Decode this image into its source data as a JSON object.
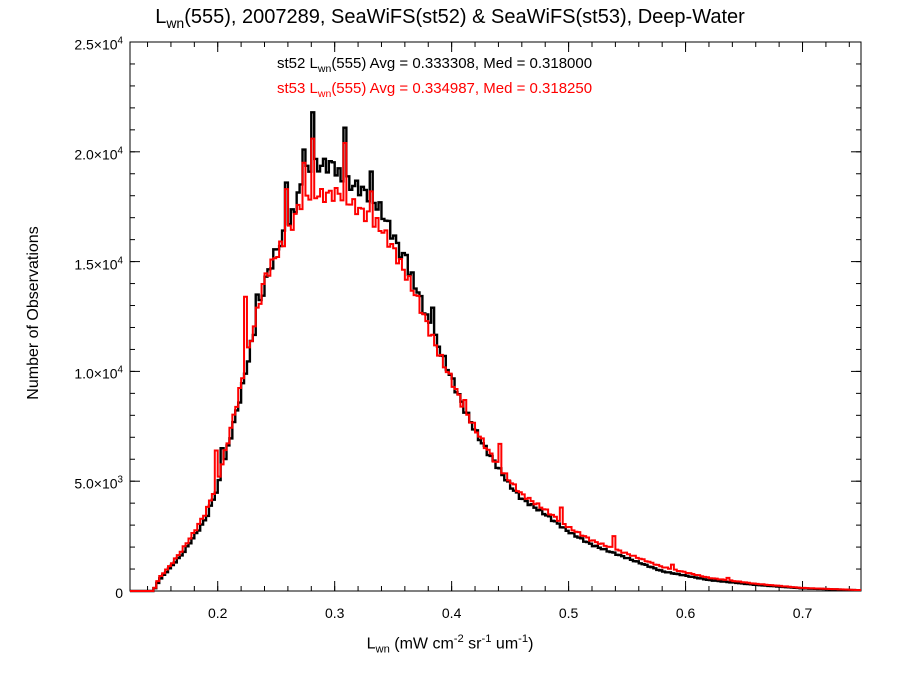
{
  "chart_data": {
    "type": "line",
    "title": {
      "main": "L",
      "sub": "wn",
      "rest": "(555), 2007289, SeaWiFS(st52) & SeaWiFS(st53), Deep-Water"
    },
    "xlabel": {
      "main": "L",
      "sub": "wn",
      "units": "(mW cm",
      "units_sup1": "-2",
      "units_mid1": " sr",
      "units_sup2": "-1",
      "units_mid2": " um",
      "units_sup3": "-1",
      "units_end": ")"
    },
    "ylabel": "Number of Observations",
    "xlim": [
      0.125,
      0.75
    ],
    "ylim": [
      0,
      25000
    ],
    "x_ticks": [
      {
        "v": 0.2,
        "label": "0.2"
      },
      {
        "v": 0.3,
        "label": "0.3"
      },
      {
        "v": 0.4,
        "label": "0.4"
      },
      {
        "v": 0.5,
        "label": "0.5"
      },
      {
        "v": 0.6,
        "label": "0.6"
      },
      {
        "v": 0.7,
        "label": "0.7"
      }
    ],
    "y_ticks": [
      {
        "v": 0,
        "base": "0",
        "exp": ""
      },
      {
        "v": 5000,
        "base": "5.0×10",
        "exp": "3"
      },
      {
        "v": 10000,
        "base": "1.0×10",
        "exp": "4"
      },
      {
        "v": 15000,
        "base": "1.5×10",
        "exp": "4"
      },
      {
        "v": 20000,
        "base": "2.0×10",
        "exp": "4"
      },
      {
        "v": 25000,
        "base": "2.5×10",
        "exp": "4"
      }
    ],
    "annotations": [
      {
        "prefix": "st52 L",
        "sub": "wn",
        "rest": "(555) Avg = 0.333308, Med = 0.318000",
        "color": "#000000"
      },
      {
        "prefix": "st53 L",
        "sub": "wn",
        "rest": "(555) Avg = 0.334987, Med = 0.318250",
        "color": "#ff0000"
      }
    ],
    "series": [
      {
        "color": "#000000",
        "x": [
          0.125,
          0.145,
          0.15,
          0.16,
          0.17,
          0.18,
          0.19,
          0.2,
          0.21,
          0.22,
          0.23,
          0.24,
          0.25,
          0.26,
          0.27,
          0.275,
          0.2815,
          0.29,
          0.3,
          0.305,
          0.3085,
          0.32,
          0.33,
          0.34,
          0.35,
          0.36,
          0.37,
          0.38,
          0.39,
          0.4,
          0.41,
          0.42,
          0.43,
          0.44,
          0.45,
          0.46,
          0.48,
          0.5,
          0.52,
          0.55,
          0.58,
          0.62,
          0.66,
          0.7,
          0.75
        ],
        "y": [
          0,
          0,
          500,
          1100,
          1700,
          2500,
          3300,
          4700,
          6800,
          9000,
          11500,
          14000,
          15500,
          16500,
          18200,
          19000,
          19300,
          19400,
          19400,
          18800,
          18600,
          18400,
          18000,
          17300,
          16200,
          15000,
          13800,
          12300,
          11000,
          9700,
          8400,
          7300,
          6400,
          5600,
          4800,
          4200,
          3500,
          2700,
          2100,
          1500,
          900,
          500,
          280,
          120,
          30
        ],
        "spikes": [
          {
            "x": 0.2815,
            "y": 21800
          },
          {
            "x": 0.2725,
            "y": 20100
          },
          {
            "x": 0.3085,
            "y": 21100
          },
          {
            "x": 0.332,
            "y": 19100
          },
          {
            "x": 0.258,
            "y": 18600
          },
          {
            "x": 0.235,
            "y": 13500
          },
          {
            "x": 0.362,
            "y": 15300
          },
          {
            "x": 0.383,
            "y": 12900
          },
          {
            "x": 0.205,
            "y": 6500
          }
        ]
      },
      {
        "color": "#ff0000",
        "x": [
          0.125,
          0.145,
          0.15,
          0.16,
          0.17,
          0.18,
          0.19,
          0.2,
          0.21,
          0.22,
          0.23,
          0.24,
          0.25,
          0.26,
          0.27,
          0.275,
          0.2815,
          0.29,
          0.3,
          0.305,
          0.3085,
          0.32,
          0.33,
          0.34,
          0.35,
          0.36,
          0.37,
          0.38,
          0.39,
          0.4,
          0.41,
          0.42,
          0.43,
          0.44,
          0.45,
          0.46,
          0.48,
          0.5,
          0.52,
          0.55,
          0.58,
          0.62,
          0.66,
          0.7,
          0.75
        ],
        "y": [
          0,
          0,
          600,
          1200,
          1900,
          2700,
          3600,
          5000,
          7100,
          9400,
          11800,
          14200,
          15300,
          16200,
          17600,
          18000,
          18100,
          18000,
          18100,
          18100,
          17900,
          17400,
          17000,
          16500,
          15600,
          14500,
          13400,
          12000,
          10700,
          9600,
          8400,
          7400,
          6500,
          5700,
          5000,
          4400,
          3700,
          2900,
          2300,
          1700,
          1100,
          600,
          330,
          140,
          40
        ],
        "spikes": [
          {
            "x": 0.2815,
            "y": 20600
          },
          {
            "x": 0.2725,
            "y": 19500
          },
          {
            "x": 0.3085,
            "y": 20400
          },
          {
            "x": 0.332,
            "y": 18200
          },
          {
            "x": 0.258,
            "y": 18300
          },
          {
            "x": 0.224,
            "y": 13400
          },
          {
            "x": 0.198,
            "y": 6400
          },
          {
            "x": 0.441,
            "y": 6700
          },
          {
            "x": 0.375,
            "y": 12600
          },
          {
            "x": 0.412,
            "y": 8700
          },
          {
            "x": 0.493,
            "y": 3800
          },
          {
            "x": 0.538,
            "y": 2500
          },
          {
            "x": 0.589,
            "y": 1200
          },
          {
            "x": 0.635,
            "y": 600
          }
        ]
      }
    ]
  }
}
